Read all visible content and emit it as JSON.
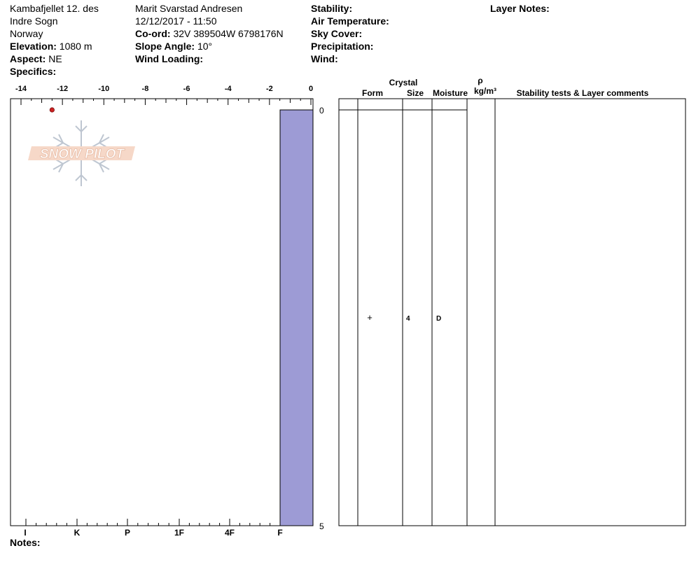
{
  "header": {
    "location_lines": [
      "Kambafjellet 12. des",
      "Indre Sogn",
      "Norway"
    ],
    "elevation_label": "Elevation:",
    "elevation": "1080 m",
    "aspect_label": "Aspect:",
    "aspect": "NE",
    "specifics_label": "Specifics:",
    "observer": "Marit Svarstad Andresen",
    "datetime": "12/12/2017 - 11:50",
    "coord_label": "Co-ord:",
    "coord": "32V 389504W 6798176N",
    "slope_label": "Slope Angle:",
    "slope": "10°",
    "wind_loading_label": "Wind Loading:",
    "stability_label": "Stability:",
    "air_temp_label": "Air Temperature:",
    "sky_cover_label": "Sky Cover:",
    "precip_label": "Precipitation:",
    "wind_label": "Wind:",
    "layer_notes_label": "Layer Notes:"
  },
  "notes_label": "Notes:",
  "logo_text": "SNOW PILOT",
  "colors": {
    "hardness_fill": "#9d9bd5",
    "temp_point": "#cc2222",
    "logo": "#e8a889"
  },
  "columns": {
    "crystal": "Crystal",
    "form": "Form",
    "size": "Size",
    "moisture": "Moisture",
    "rho": "ρ",
    "rho_unit": "kg/m³",
    "comments": "Stability tests & Layer comments"
  },
  "chart_data": {
    "type": "snow-profile",
    "temperature_axis": {
      "min": -14,
      "max": 0,
      "ticks": [
        -14,
        -12,
        -10,
        -8,
        -6,
        -4,
        -2,
        0
      ]
    },
    "depth_axis": {
      "min": 0,
      "max": 5,
      "labels": [
        "0",
        "5"
      ]
    },
    "hardness_axis": {
      "labels": [
        "I",
        "K",
        "P",
        "1F",
        "4F",
        "F"
      ]
    },
    "temperature_points": [
      {
        "temp": -12.5,
        "depth": 0
      }
    ],
    "layers": [
      {
        "top": 0,
        "bottom": 5,
        "hardness": "F",
        "form": "+",
        "size": "4",
        "moisture": "D"
      }
    ]
  }
}
